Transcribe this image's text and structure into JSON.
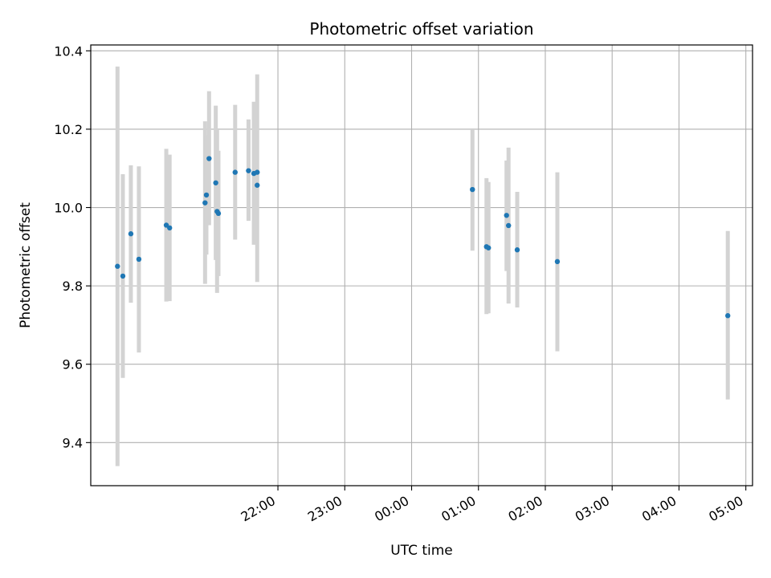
{
  "chart_data": {
    "type": "scatter",
    "title": "Photometric offset variation",
    "xlabel": "UTC time",
    "ylabel": "Photometric offset",
    "x_unit": "hours since 00:00 UTC (negative = previous day)",
    "xlim": [
      -4.8,
      5.1
    ],
    "ylim": [
      9.29,
      10.415
    ],
    "x_ticks": [
      {
        "value": -2,
        "label": "22:00"
      },
      {
        "value": -1,
        "label": "23:00"
      },
      {
        "value": 0,
        "label": "00:00"
      },
      {
        "value": 1,
        "label": "01:00"
      },
      {
        "value": 2,
        "label": "02:00"
      },
      {
        "value": 3,
        "label": "03:00"
      },
      {
        "value": 4,
        "label": "04:00"
      },
      {
        "value": 5,
        "label": "05:00"
      }
    ],
    "y_ticks": [
      {
        "value": 9.4,
        "label": "9.4"
      },
      {
        "value": 9.6,
        "label": "9.6"
      },
      {
        "value": 9.8,
        "label": "9.8"
      },
      {
        "value": 10.0,
        "label": "10.0"
      },
      {
        "value": 10.2,
        "label": "10.2"
      },
      {
        "value": 10.4,
        "label": "10.4"
      }
    ],
    "grid": true,
    "point_color": "#1f77b4",
    "errorbar_color": "#d3d3d3",
    "points": [
      {
        "x": -4.4,
        "y": 9.85,
        "ylow": 9.34,
        "yhigh": 10.36
      },
      {
        "x": -4.32,
        "y": 9.825,
        "ylow": 9.565,
        "yhigh": 10.085
      },
      {
        "x": -4.2,
        "y": 9.933,
        "ylow": 9.757,
        "yhigh": 10.108
      },
      {
        "x": -4.08,
        "y": 9.868,
        "ylow": 9.63,
        "yhigh": 10.105
      },
      {
        "x": -3.67,
        "y": 9.955,
        "ylow": 9.76,
        "yhigh": 10.15
      },
      {
        "x": -3.62,
        "y": 9.948,
        "ylow": 9.761,
        "yhigh": 10.135
      },
      {
        "x": -3.09,
        "y": 10.012,
        "ylow": 9.805,
        "yhigh": 10.22
      },
      {
        "x": -3.07,
        "y": 10.032,
        "ylow": 9.88,
        "yhigh": 10.185
      },
      {
        "x": -3.03,
        "y": 10.125,
        "ylow": 9.955,
        "yhigh": 10.297
      },
      {
        "x": -2.93,
        "y": 10.063,
        "ylow": 9.866,
        "yhigh": 10.26
      },
      {
        "x": -2.91,
        "y": 9.99,
        "ylow": 9.782,
        "yhigh": 10.198
      },
      {
        "x": -2.89,
        "y": 9.985,
        "ylow": 9.825,
        "yhigh": 10.145
      },
      {
        "x": -2.64,
        "y": 10.09,
        "ylow": 9.918,
        "yhigh": 10.262
      },
      {
        "x": -2.44,
        "y": 10.094,
        "ylow": 9.966,
        "yhigh": 10.225
      },
      {
        "x": -2.36,
        "y": 10.087,
        "ylow": 9.905,
        "yhigh": 10.27
      },
      {
        "x": -2.31,
        "y": 10.057,
        "ylow": 9.81,
        "yhigh": 10.34
      },
      {
        "x": -2.31,
        "y": 10.09,
        "ylow": 10.09,
        "yhigh": 10.09
      },
      {
        "x": 0.91,
        "y": 10.046,
        "ylow": 9.89,
        "yhigh": 10.198
      },
      {
        "x": 1.12,
        "y": 9.9,
        "ylow": 9.728,
        "yhigh": 10.075
      },
      {
        "x": 1.15,
        "y": 9.897,
        "ylow": 9.73,
        "yhigh": 10.065
      },
      {
        "x": 1.42,
        "y": 9.98,
        "ylow": 9.838,
        "yhigh": 10.12
      },
      {
        "x": 1.45,
        "y": 9.954,
        "ylow": 9.755,
        "yhigh": 10.153
      },
      {
        "x": 1.58,
        "y": 9.892,
        "ylow": 9.745,
        "yhigh": 10.04
      },
      {
        "x": 2.18,
        "y": 9.862,
        "ylow": 9.633,
        "yhigh": 10.09
      },
      {
        "x": 4.73,
        "y": 9.724,
        "ylow": 9.51,
        "yhigh": 9.94
      }
    ]
  }
}
